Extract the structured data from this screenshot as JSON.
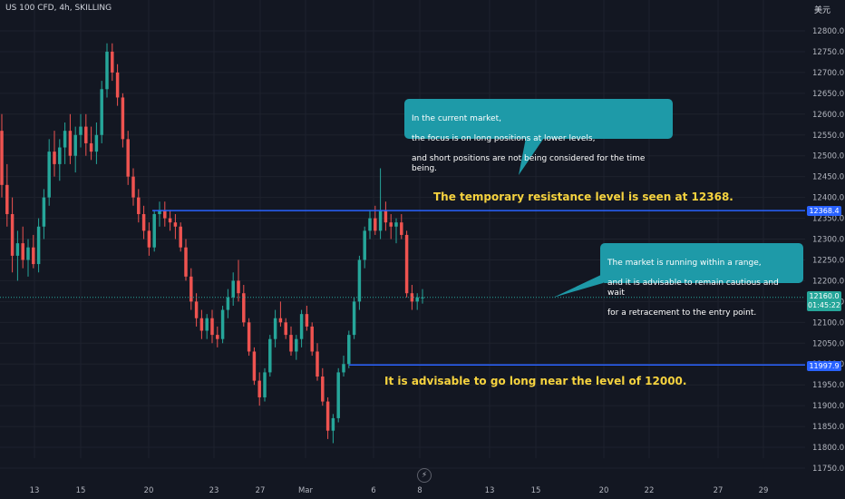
{
  "header": {
    "symbol_line": "US 100 CFD, 4h, SKILLING",
    "currency_label": "美元"
  },
  "colors": {
    "background": "#131722",
    "up": "#26a69a",
    "down": "#ef5350",
    "level_line": "#2962ff",
    "callout": "#1e9aa8",
    "note_text": "#f6d33f",
    "current_price": "#26a69a"
  },
  "callouts": {
    "top": {
      "lines": [
        "In the current market,",
        "the focus is on long positions at lower levels,",
        "and short positions are not being considered for the time being."
      ]
    },
    "right": {
      "lines": [
        "The market is running within a range,",
        "and it is advisable to remain cautious and wait",
        "for a retracement to the entry point."
      ]
    }
  },
  "notes": {
    "resistance": "The temporary resistance level is seen at 12368.",
    "long": "It is advisable to go long near the level of 12000."
  },
  "price_tags": {
    "resistance": "12368.4",
    "current_price": "12160.0",
    "countdown": "01:45:22",
    "support": "11997.9"
  },
  "chart_data": {
    "type": "candlestick",
    "title": "US 100 CFD, 4h, SKILLING",
    "ylim": [
      11725,
      12840
    ],
    "y_ticks": [
      11750,
      11800,
      11850,
      11900,
      11950,
      12000,
      12050,
      12100,
      12150,
      12200,
      12250,
      12300,
      12350,
      12400,
      12450,
      12500,
      12550,
      12600,
      12650,
      12700,
      12750,
      12800
    ],
    "x_ticks": [
      "13",
      "15",
      "20",
      "23",
      "27",
      "Mar",
      "6",
      "8",
      "13",
      "15",
      "20",
      "22",
      "27",
      "29"
    ],
    "horizontal_levels": [
      12368.4,
      11997.9
    ],
    "current_price": 12160.0,
    "candles_ohlc": [
      [
        12560,
        12600,
        12400,
        12430
      ],
      [
        12430,
        12480,
        12330,
        12360
      ],
      [
        12360,
        12400,
        12220,
        12260
      ],
      [
        12260,
        12320,
        12200,
        12290
      ],
      [
        12290,
        12330,
        12230,
        12250
      ],
      [
        12250,
        12300,
        12210,
        12280
      ],
      [
        12280,
        12310,
        12230,
        12240
      ],
      [
        12240,
        12350,
        12220,
        12330
      ],
      [
        12330,
        12420,
        12300,
        12400
      ],
      [
        12400,
        12540,
        12380,
        12510
      ],
      [
        12510,
        12560,
        12450,
        12480
      ],
      [
        12480,
        12540,
        12440,
        12520
      ],
      [
        12520,
        12580,
        12480,
        12560
      ],
      [
        12560,
        12600,
        12480,
        12500
      ],
      [
        12500,
        12570,
        12460,
        12550
      ],
      [
        12550,
        12600,
        12520,
        12570
      ],
      [
        12570,
        12600,
        12500,
        12530
      ],
      [
        12530,
        12570,
        12490,
        12510
      ],
      [
        12510,
        12580,
        12480,
        12550
      ],
      [
        12550,
        12680,
        12530,
        12660
      ],
      [
        12660,
        12770,
        12640,
        12750
      ],
      [
        12750,
        12770,
        12680,
        12700
      ],
      [
        12700,
        12720,
        12620,
        12640
      ],
      [
        12640,
        12650,
        12520,
        12540
      ],
      [
        12540,
        12560,
        12430,
        12450
      ],
      [
        12450,
        12470,
        12380,
        12400
      ],
      [
        12400,
        12420,
        12340,
        12360
      ],
      [
        12360,
        12380,
        12300,
        12320
      ],
      [
        12320,
        12340,
        12260,
        12280
      ],
      [
        12280,
        12370,
        12270,
        12360
      ],
      [
        12360,
        12390,
        12330,
        12370
      ],
      [
        12370,
        12390,
        12330,
        12350
      ],
      [
        12350,
        12370,
        12320,
        12340
      ],
      [
        12340,
        12360,
        12300,
        12330
      ],
      [
        12330,
        12340,
        12270,
        12280
      ],
      [
        12280,
        12300,
        12200,
        12210
      ],
      [
        12210,
        12230,
        12130,
        12150
      ],
      [
        12150,
        12170,
        12090,
        12110
      ],
      [
        12110,
        12130,
        12060,
        12080
      ],
      [
        12080,
        12120,
        12060,
        12110
      ],
      [
        12110,
        12130,
        12050,
        12070
      ],
      [
        12070,
        12090,
        12040,
        12060
      ],
      [
        12060,
        12140,
        12050,
        12130
      ],
      [
        12130,
        12180,
        12110,
        12160
      ],
      [
        12160,
        12220,
        12140,
        12200
      ],
      [
        12200,
        12250,
        12150,
        12170
      ],
      [
        12170,
        12190,
        12090,
        12100
      ],
      [
        12100,
        12110,
        12020,
        12030
      ],
      [
        12030,
        12040,
        11950,
        11960
      ],
      [
        11960,
        11980,
        11900,
        11920
      ],
      [
        11920,
        11990,
        11910,
        11980
      ],
      [
        11980,
        12070,
        11970,
        12060
      ],
      [
        12060,
        12130,
        12040,
        12110
      ],
      [
        12110,
        12150,
        12090,
        12100
      ],
      [
        12100,
        12110,
        12060,
        12070
      ],
      [
        12070,
        12090,
        12020,
        12030
      ],
      [
        12030,
        12070,
        12010,
        12060
      ],
      [
        12060,
        12130,
        12040,
        12120
      ],
      [
        12120,
        12140,
        12080,
        12090
      ],
      [
        12090,
        12100,
        12020,
        12030
      ],
      [
        12030,
        12050,
        11960,
        11970
      ],
      [
        11970,
        11990,
        11900,
        11910
      ],
      [
        11910,
        11920,
        11820,
        11840
      ],
      [
        11840,
        11880,
        11810,
        11870
      ],
      [
        11870,
        11990,
        11860,
        11980
      ],
      [
        11980,
        12020,
        11970,
        12000
      ],
      [
        12000,
        12080,
        11990,
        12070
      ],
      [
        12070,
        12160,
        12060,
        12150
      ],
      [
        12150,
        12260,
        12130,
        12250
      ],
      [
        12250,
        12330,
        12230,
        12320
      ],
      [
        12320,
        12370,
        12300,
        12350
      ],
      [
        12350,
        12380,
        12310,
        12320
      ],
      [
        12320,
        12470,
        12300,
        12370
      ],
      [
        12370,
        12390,
        12320,
        12340
      ],
      [
        12340,
        12360,
        12300,
        12330
      ],
      [
        12330,
        12350,
        12290,
        12340
      ],
      [
        12340,
        12360,
        12300,
        12310
      ],
      [
        12310,
        12320,
        12160,
        12170
      ],
      [
        12170,
        12190,
        12130,
        12150
      ],
      [
        12150,
        12170,
        12130,
        12160
      ],
      [
        12160,
        12180,
        12145,
        12160
      ]
    ]
  }
}
